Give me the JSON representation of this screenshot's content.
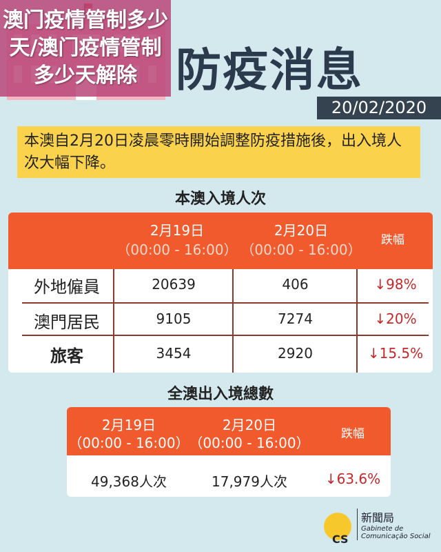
{
  "header": {
    "title": "防疫消息",
    "date": "20/02/2020"
  },
  "notice": "本澳自2月20日凌晨零時開始調整防疫措施後，出入境人次大幅下降。",
  "table1": {
    "title": "本澳入境人次",
    "columns": [
      {
        "date": "2月19日",
        "time": "（00:00 - 16:00）"
      },
      {
        "date": "2月20日",
        "time": "（00:00 - 16:00）"
      },
      {
        "date": "跌幅"
      }
    ],
    "rows": [
      {
        "label": "外地僱員",
        "a": "20639",
        "b": "406",
        "change": "↓98%"
      },
      {
        "label": "澳門居民",
        "a": "9105",
        "b": "7274",
        "change": "↓20%"
      },
      {
        "label": "旅客",
        "a": "3454",
        "b": "2920",
        "change": "↓15.5%"
      }
    ]
  },
  "table2": {
    "title": "全澳出入境總數",
    "columns": [
      {
        "date": "2月19日",
        "time": "（00:00 - 16:00）"
      },
      {
        "date": "2月20日",
        "time": "（00:00 - 16:00）"
      },
      {
        "date": "跌幅"
      }
    ],
    "row": {
      "a": "49,368人次",
      "b": "17,979人次",
      "change": "↓63.6%"
    }
  },
  "banner": "澳门疫情管制多少天/澳门疫情管制多少天解除",
  "logo": {
    "name_zh": "新聞局",
    "name_pt1": "Gabinete de",
    "name_pt2": "Comunicação Social",
    "mark": "GCS"
  },
  "colors": {
    "accent": "#f05a2c",
    "notice": "#fbd24b",
    "down": "#c6282a"
  }
}
